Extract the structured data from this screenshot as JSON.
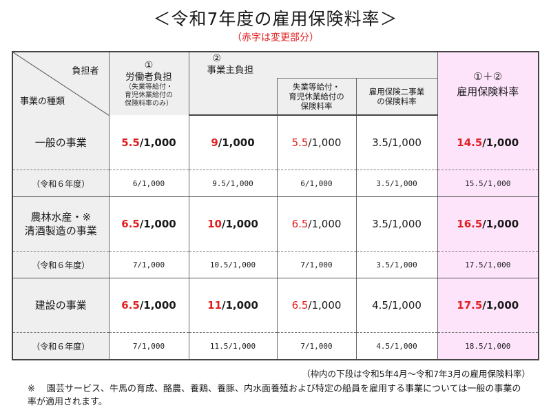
{
  "title": "＜令和7年度の雇用保険料率＞",
  "subtitle": "（赤字は変更部分）",
  "header": {
    "diag_top": "負担者",
    "diag_bottom": "事業の種類",
    "col1_num": "①",
    "col1_label": "労働者負担",
    "col1_note1": "（失業等給付・",
    "col1_note2": "育児休業給付の",
    "col1_note3": "保険料率のみ）",
    "col2_num": "②",
    "col2_label": "事業主負担",
    "col2a_l1": "失業等給付・",
    "col2a_l2": "育児休業給付の",
    "col2a_l3": "保険料率",
    "col2b_l1": "雇用保険二事業",
    "col2b_l2": "の保険料率",
    "col3_num": "①＋②",
    "col3_label": "雇用保険料率"
  },
  "chart_data": {
    "type": "table",
    "columns": [
      "労働者負担",
      "事業主負担",
      "失業等給付・育児休業給付の保険料率",
      "雇用保険二事業の保険料率",
      "雇用保険料率"
    ],
    "rows": [
      {
        "label": "一般の事業",
        "label_lines": [
          "一般の事業"
        ],
        "current": [
          "5.5/1,000",
          "9/1,000",
          "5.5/1,000",
          "3.5/1,000",
          "14.5/1,000"
        ],
        "current_red": [
          "5.5",
          "9",
          "5.5",
          "",
          "14.5"
        ],
        "current_rest": [
          "/1,000",
          "/1,000",
          "/1,000",
          "3.5/1,000",
          "/1,000"
        ],
        "prev_label": "（令和６年度）",
        "previous": [
          "6/1,000",
          "9.5/1,000",
          "6/1,000",
          "3.5/1,000",
          "15.5/1,000"
        ]
      },
      {
        "label": "農林水産・※清酒製造の事業",
        "label_lines": [
          "農林水産・※",
          "清酒製造の事業"
        ],
        "current": [
          "6.5/1,000",
          "10/1,000",
          "6.5/1,000",
          "3.5/1,000",
          "16.5/1,000"
        ],
        "current_red": [
          "6.5",
          "10",
          "6.5",
          "",
          "16.5"
        ],
        "current_rest": [
          "/1,000",
          "/1,000",
          "/1,000",
          "3.5/1,000",
          "/1,000"
        ],
        "prev_label": "（令和６年度）",
        "previous": [
          "7/1,000",
          "10.5/1,000",
          "7/1,000",
          "3.5/1,000",
          "17.5/1,000"
        ]
      },
      {
        "label": "建設の事業",
        "label_lines": [
          "建設の事業"
        ],
        "current": [
          "6.5/1,000",
          "11/1,000",
          "6.5/1,000",
          "4.5/1,000",
          "17.5/1,000"
        ],
        "current_red": [
          "6.5",
          "11",
          "6.5",
          "",
          "17.5"
        ],
        "current_rest": [
          "/1,000",
          "/1,000",
          "/1,000",
          "4.5/1,000",
          "/1,000"
        ],
        "prev_label": "（令和６年度）",
        "previous": [
          "7/1,000",
          "11.5/1,000",
          "7/1,000",
          "4.5/1,000",
          "18.5/1,000"
        ]
      }
    ]
  },
  "footer_note": "（枠内の下段は令和5年4月～令和7年3月の雇用保険料率）",
  "footnote_mark": "※",
  "footnote_text": "園芸サービス、牛馬の育成、酪農、養鶏、養豚、内水面養殖および特定の船員を雇用する事業については一般の事業の率が適用されます。",
  "colors": {
    "accent_red": "#e02020",
    "sum_column_bg": "#fde4fb",
    "header_bg": "#efefef"
  }
}
